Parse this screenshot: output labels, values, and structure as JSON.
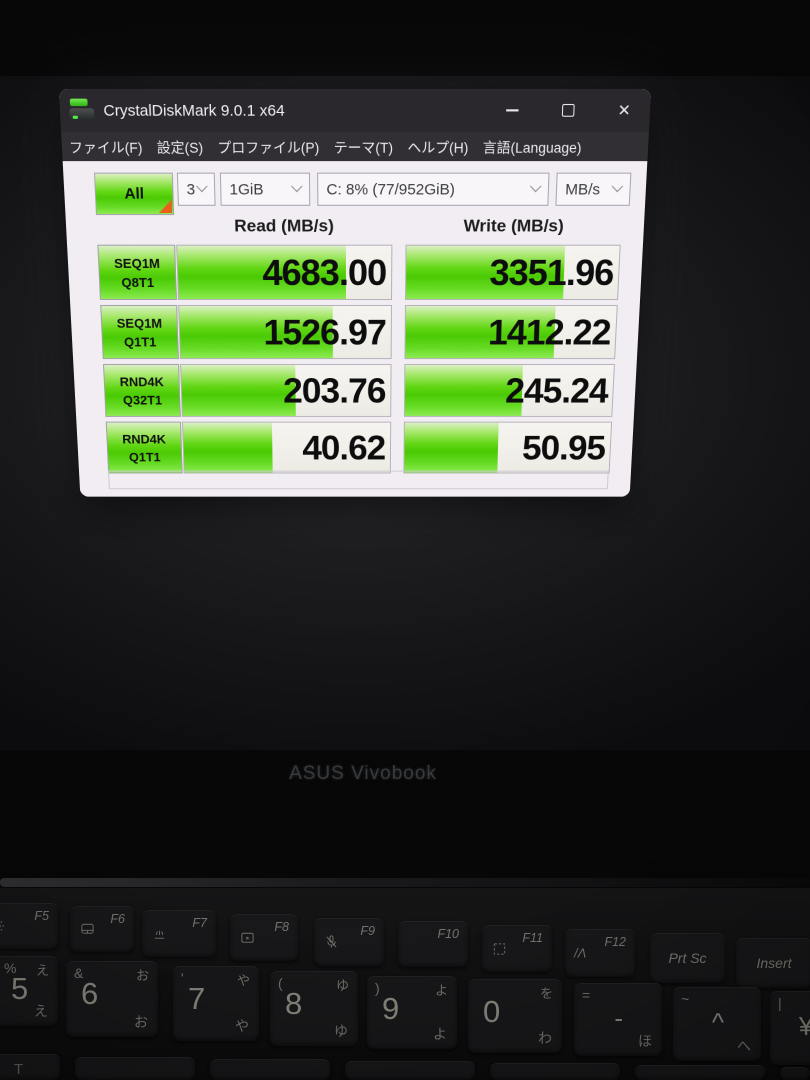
{
  "window": {
    "title": "CrystalDiskMark 9.0.1 x64",
    "app_icon": "disk-stack",
    "controls": {
      "minimize": "minus-icon",
      "maximize": "square-icon",
      "close": "x-icon",
      "close_glyph": "✕"
    },
    "menu": [
      "ファイル(F)",
      "設定(S)",
      "プロファイル(P)",
      "テーマ(T)",
      "ヘルプ(H)",
      "言語(Language)"
    ]
  },
  "toolbar": {
    "all_button": "All",
    "test_count": "3",
    "test_size": "1GiB",
    "target_drive": "C: 8% (77/952GiB)",
    "unit": "MB/s"
  },
  "results": {
    "read_header": "Read (MB/s)",
    "write_header": "Write (MB/s)",
    "rows": [
      {
        "label_line1": "SEQ1M",
        "label_line2": "Q8T1",
        "read": "4683.00",
        "write": "3351.96",
        "read_fill": 0.79,
        "write_fill": 0.745
      },
      {
        "label_line1": "SEQ1M",
        "label_line2": "Q1T1",
        "read": "1526.97",
        "write": "1412.22",
        "read_fill": 0.725,
        "write_fill": 0.71
      },
      {
        "label_line1": "RND4K",
        "label_line2": "Q32T1",
        "read": "203.76",
        "write": "245.24",
        "read_fill": 0.545,
        "write_fill": 0.565
      },
      {
        "label_line1": "RND4K",
        "label_line2": "Q1T1",
        "read": "40.62",
        "write": "50.95",
        "read_fill": 0.43,
        "write_fill": 0.455
      }
    ]
  },
  "colors": {
    "bar_green": "#4aca04",
    "bar_green_light": "#abe972",
    "marker_orange": "#e8611c",
    "titlebar": "#2a282c",
    "client_bg": "#f1edf3"
  },
  "laptop": {
    "brand_text": "ASUS Vivobook",
    "keyboard": {
      "function_row": [
        {
          "icon": "brightness-icon",
          "label": "F5"
        },
        {
          "icon": "touchpad-icon",
          "label": "F6"
        },
        {
          "icon": "keyboard-light-icon",
          "label": "F7"
        },
        {
          "icon": "display-mirror-icon",
          "label": "F8"
        },
        {
          "icon": "mic-mute-icon",
          "label": "F9"
        },
        {
          "icon": "",
          "label": "F10"
        },
        {
          "icon": "snip-icon",
          "label": "F11"
        },
        {
          "icon": "myasus-icon",
          "label": "F12"
        },
        {
          "icon": "",
          "label": "Prt Sc",
          "center": true
        },
        {
          "icon": "",
          "label": "Insert",
          "center": true
        }
      ],
      "number_row": [
        {
          "shift": "%",
          "main": "5",
          "kana_top": "え",
          "kana_bottom": "え"
        },
        {
          "shift": "&",
          "main": "6",
          "kana_top": "お",
          "kana_bottom": "お"
        },
        {
          "shift": "'",
          "main": "7",
          "kana_top": "や",
          "kana_bottom": "や"
        },
        {
          "shift": "(",
          "main": "8",
          "kana_top": "ゆ",
          "kana_bottom": "ゆ"
        },
        {
          "shift": ")",
          "main": "9",
          "kana_top": "よ",
          "kana_bottom": "よ"
        },
        {
          "shift": "",
          "main": "0",
          "kana_top": "を",
          "kana_bottom": "わ"
        },
        {
          "shift": "=",
          "main": "-",
          "kana_top": "",
          "kana_bottom": "ほ"
        },
        {
          "shift": "~",
          "main": "^",
          "kana_top": "",
          "kana_bottom": "へ"
        },
        {
          "shift": "|",
          "main": "¥",
          "kana_top": "",
          "kana_bottom": ""
        }
      ],
      "partial_key_label": "T"
    }
  }
}
